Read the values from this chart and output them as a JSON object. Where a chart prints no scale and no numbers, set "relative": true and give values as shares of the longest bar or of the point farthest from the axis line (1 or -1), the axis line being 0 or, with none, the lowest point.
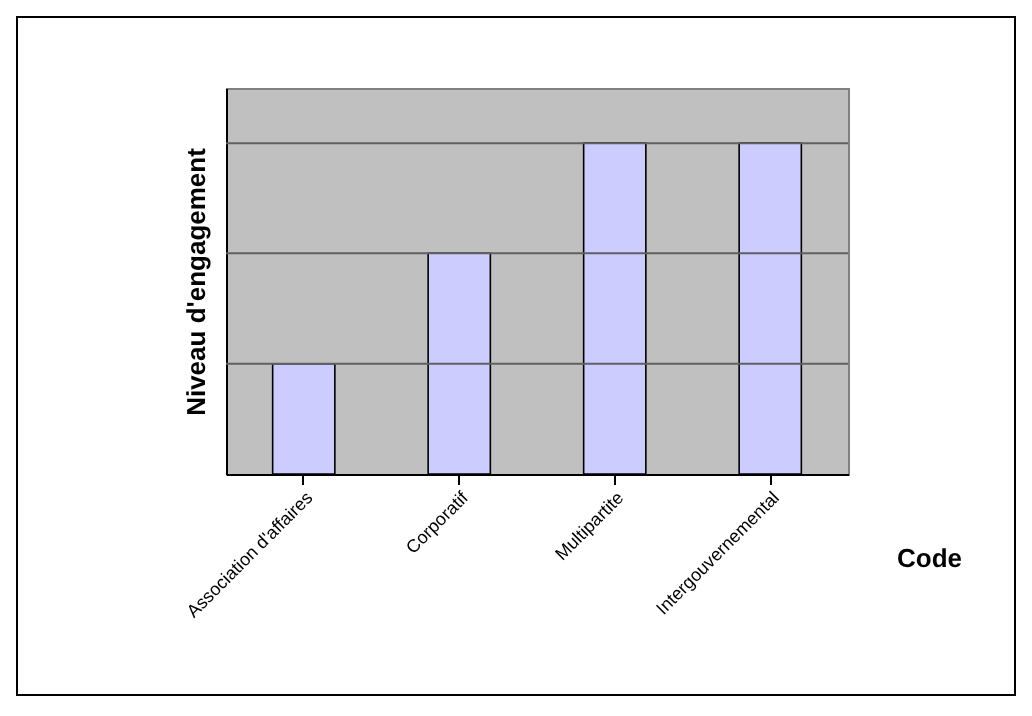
{
  "chart_data": {
    "type": "bar",
    "relative": true,
    "xlabel": "Code",
    "ylabel": "Niveau d'engagement",
    "categories": [
      "Association d'affaires",
      "Corporatif",
      "Multipartite",
      "Intergouvernemental"
    ],
    "values": [
      0.333,
      0.667,
      1,
      1
    ],
    "color": "#ccccff",
    "ref_lines": [
      {
        "axis": "y",
        "value": 0.333,
        "color": "#606060"
      },
      {
        "axis": "y",
        "value": 0.667,
        "color": "#606060"
      },
      {
        "axis": "y",
        "value": 1,
        "color": "#606060"
      }
    ]
  }
}
